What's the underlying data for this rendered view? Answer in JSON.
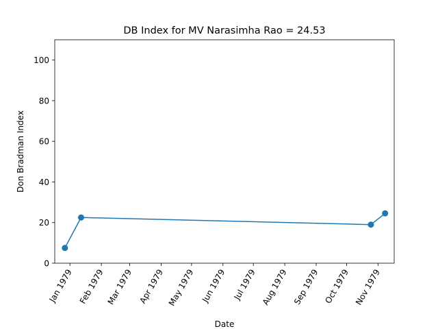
{
  "chart_data": {
    "type": "line",
    "title": "DB Index for MV Narasimha Rao = 24.53",
    "xlabel": "Date",
    "ylabel": "Don Bradman Index",
    "x_tick_labels": [
      "Jan 1979",
      "Feb 1979",
      "Mar 1979",
      "Apr 1979",
      "May 1979",
      "Jun 1979",
      "Jul 1979",
      "Aug 1979",
      "Sep 1979",
      "Oct 1979",
      "Nov 1979"
    ],
    "y_ticks": [
      0,
      20,
      40,
      60,
      80,
      100
    ],
    "ylim": [
      0,
      110
    ],
    "xlim": [
      "1978-12-17",
      "1979-11-17"
    ],
    "series": [
      {
        "color": "#1f77b4",
        "points": [
          {
            "x": "1978-12-27",
            "y": 7.5
          },
          {
            "x": "1979-01-12",
            "y": 22.5
          },
          {
            "x": "1979-10-25",
            "y": 19.0
          },
          {
            "x": "1979-11-08",
            "y": 24.53
          }
        ]
      }
    ],
    "grid": false,
    "legend": false
  }
}
